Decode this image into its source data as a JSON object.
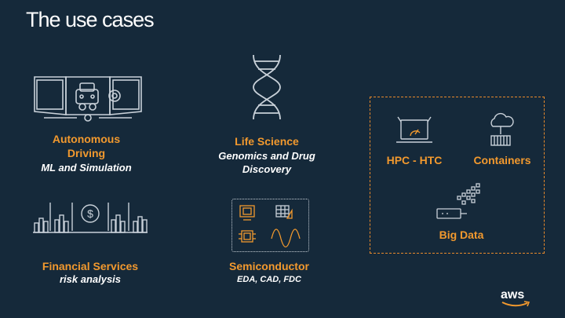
{
  "slide": {
    "title": "The use cases"
  },
  "cases": {
    "autonomous": {
      "title_line1": "Autonomous",
      "title_line2": "Driving",
      "subtitle": "ML and Simulation"
    },
    "life_science": {
      "title": "Life Science",
      "subtitle_line1": "Genomics and Drug",
      "subtitle_line2": "Discovery"
    },
    "financial": {
      "title": "Financial Services",
      "subtitle": "risk analysis"
    },
    "semiconductor": {
      "title": "Semiconductor",
      "subtitle": "EDA, CAD, FDC"
    },
    "hpc": {
      "title": "HPC - HTC"
    },
    "containers": {
      "title": "Containers"
    },
    "big_data": {
      "title": "Big Data"
    }
  },
  "branding": {
    "logo_text": "aws"
  },
  "colors": {
    "background": "#15293a",
    "accent": "#f2992e",
    "icon_stroke": "#c9d1d9",
    "box_border": "#e8892b"
  },
  "icons": [
    "car-simulation-icon",
    "dna-icon",
    "financial-chart-icon",
    "dollar-icon",
    "chip-design-icon",
    "monitor-chip-icon",
    "spreadsheet-icon",
    "processor-icon",
    "waveform-icon",
    "hpc-laptop-icon",
    "container-cloud-icon",
    "big-data-icon"
  ]
}
